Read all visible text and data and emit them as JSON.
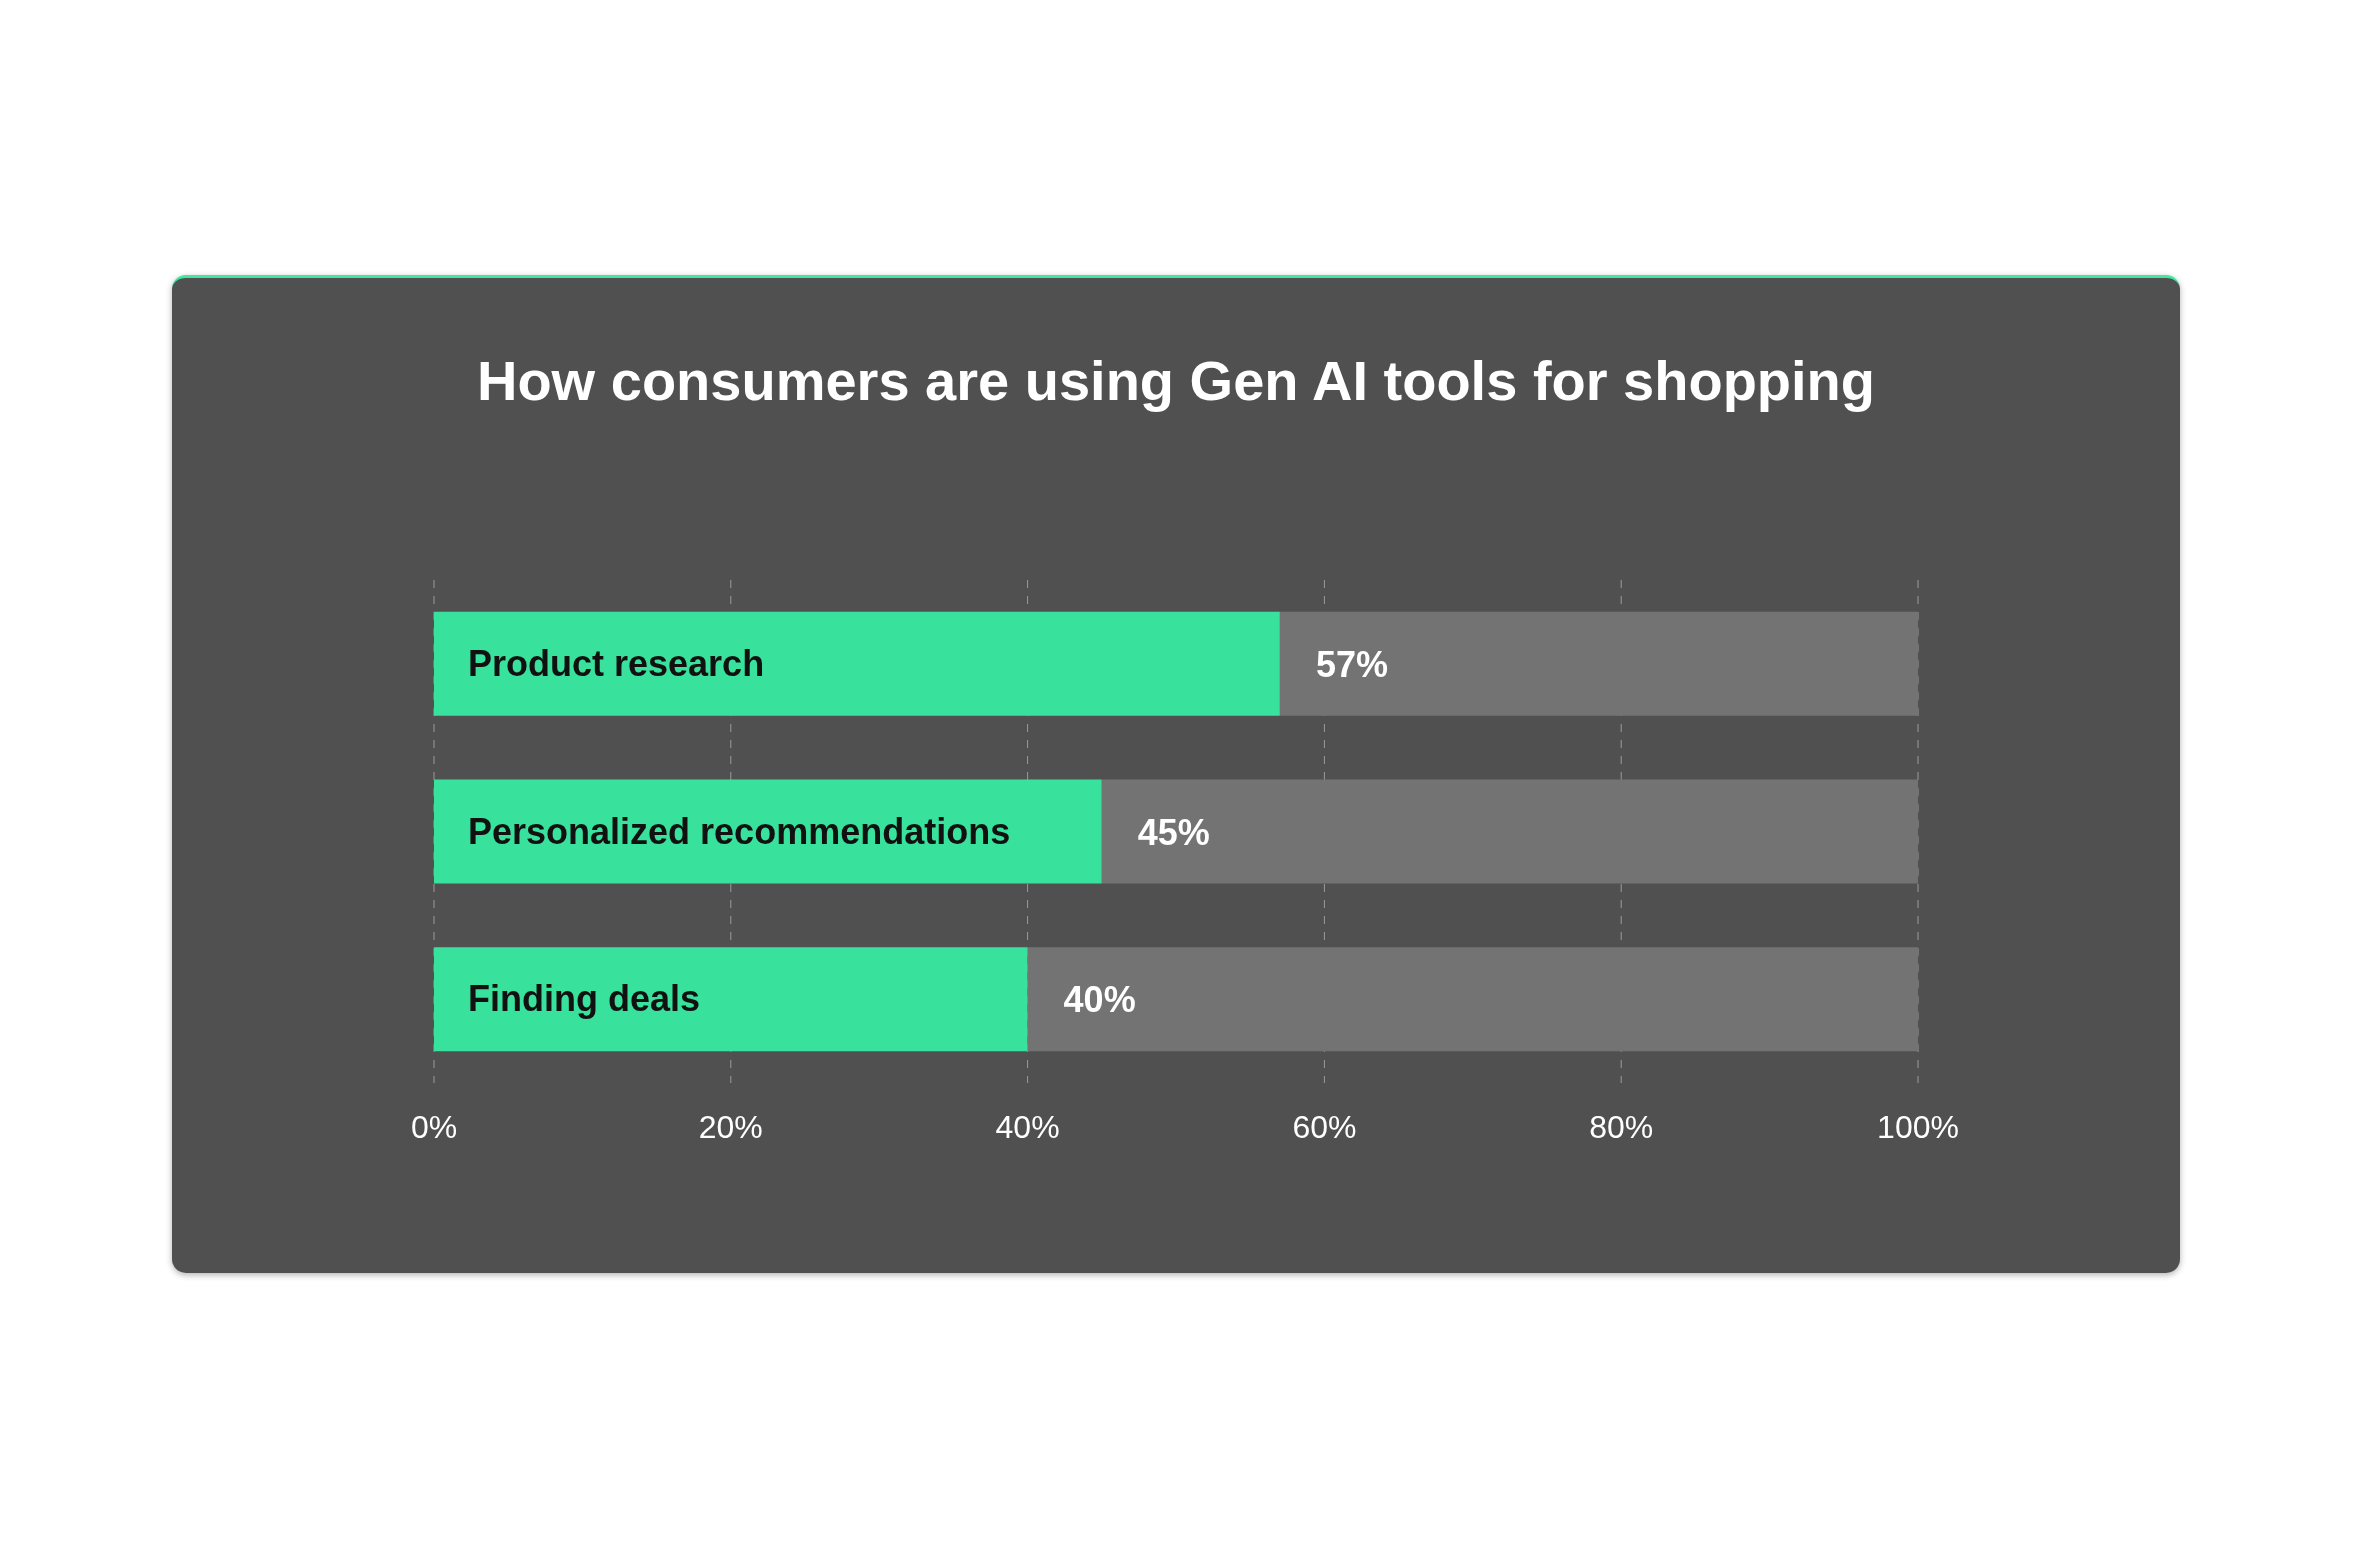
{
  "chart_data": {
    "type": "bar",
    "orientation": "horizontal",
    "stacked": true,
    "title": "How consumers are using Gen AI tools for shopping",
    "categories": [
      "Product research",
      "Personalized recommendations",
      "Finding deals"
    ],
    "series": [
      {
        "color": "#38e29d",
        "values": [
          57,
          45,
          40
        ],
        "value_labels": [
          "57%",
          "45%",
          "40%"
        ]
      },
      {
        "color": "#737373",
        "values": [
          43,
          55,
          60
        ]
      }
    ],
    "xlim": [
      0,
      100
    ],
    "xticks": [
      {
        "value": 0,
        "label": "0%"
      },
      {
        "value": 20,
        "label": "20%"
      },
      {
        "value": 40,
        "label": "40%"
      },
      {
        "value": 60,
        "label": "60%"
      },
      {
        "value": 80,
        "label": "80%"
      },
      {
        "value": 100,
        "label": "100%"
      }
    ],
    "grid": "x"
  }
}
